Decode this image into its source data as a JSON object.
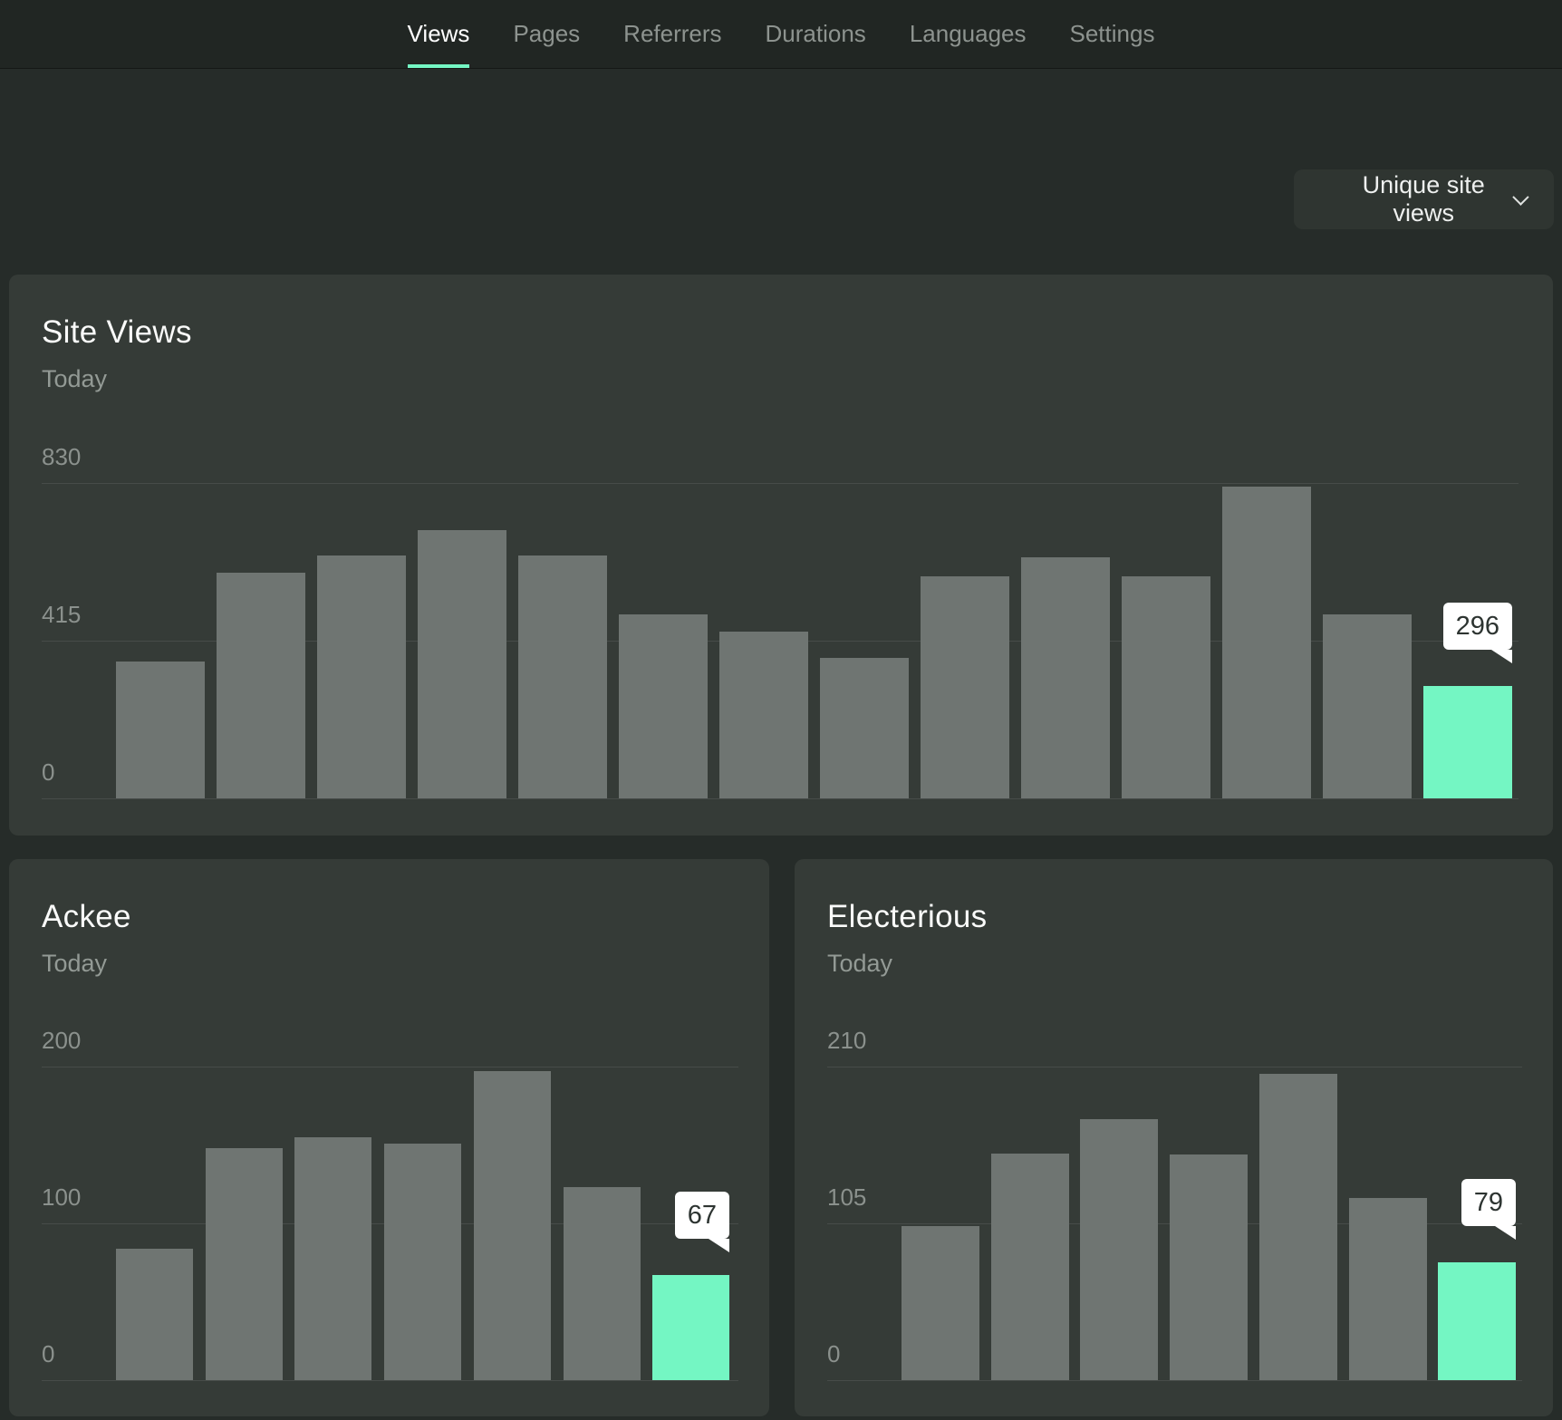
{
  "nav": {
    "items": [
      {
        "label": "Views",
        "active": true
      },
      {
        "label": "Pages",
        "active": false
      },
      {
        "label": "Referrers",
        "active": false
      },
      {
        "label": "Durations",
        "active": false
      },
      {
        "label": "Languages",
        "active": false
      },
      {
        "label": "Settings",
        "active": false
      }
    ]
  },
  "filter": {
    "label": "Unique site views"
  },
  "theme": {
    "accent": "#74f6c3",
    "bar_color": "#6f7572",
    "tooltip_bg": "#ffffff"
  },
  "chart_data": [
    {
      "type": "bar",
      "title": "Site Views",
      "subtitle": "Today",
      "ylabel": "",
      "xlabel": "",
      "ylim": [
        0,
        830
      ],
      "yticks": [
        "830",
        "415",
        "0"
      ],
      "grid": "horizontal",
      "legend": "none",
      "values": [
        360,
        595,
        640,
        705,
        640,
        485,
        440,
        370,
        585,
        635,
        585,
        820,
        485,
        296
      ],
      "highlight_index": 13,
      "highlight_label": "296"
    },
    {
      "type": "bar",
      "title": "Ackee",
      "subtitle": "Today",
      "ylabel": "",
      "xlabel": "",
      "ylim": [
        0,
        200
      ],
      "yticks": [
        "200",
        "100",
        "0"
      ],
      "grid": "horizontal",
      "legend": "none",
      "values": [
        84,
        148,
        155,
        151,
        197,
        123,
        67
      ],
      "highlight_index": 6,
      "highlight_label": "67"
    },
    {
      "type": "bar",
      "title": "Electerious",
      "subtitle": "Today",
      "ylabel": "",
      "xlabel": "",
      "ylim": [
        0,
        210
      ],
      "yticks": [
        "210",
        "105",
        "0"
      ],
      "grid": "horizontal",
      "legend": "none",
      "values": [
        103,
        152,
        175,
        151,
        205,
        122,
        79
      ],
      "highlight_index": 6,
      "highlight_label": "79"
    }
  ]
}
